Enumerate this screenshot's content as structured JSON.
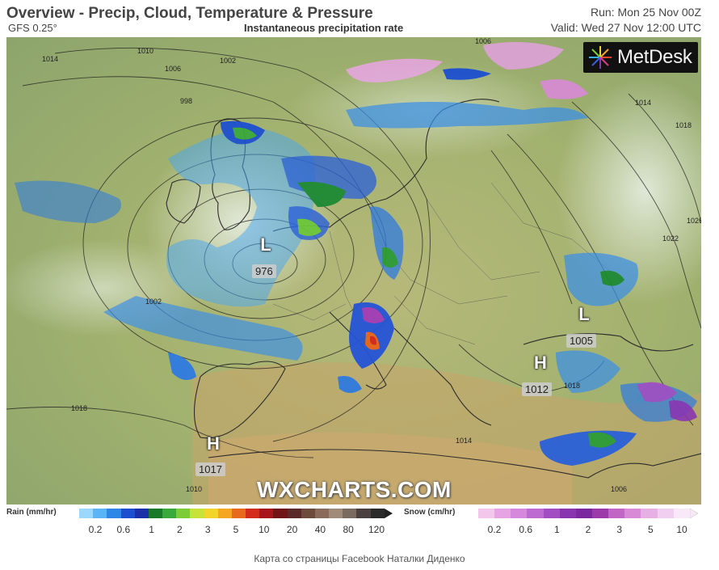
{
  "header": {
    "title": "Overview - Precip, Cloud, Temperature & Pressure",
    "model": "GFS 0.25°",
    "subtitle": "Instantaneous precipitation rate",
    "run": "Run: Mon 25 Nov 00Z",
    "valid": "Valid: Wed 27 Nov 12:00 UTC"
  },
  "logo": {
    "text": "MetDesk"
  },
  "watermark": "WXCHARTS.COM",
  "pressure_centers": [
    {
      "symbol": "L",
      "value": "976"
    },
    {
      "symbol": "L",
      "value": "1005"
    },
    {
      "symbol": "H",
      "value": "1012"
    },
    {
      "symbol": "H",
      "value": "1017"
    }
  ],
  "isobar_labels": [
    "1014",
    "1010",
    "1006",
    "1002",
    "998",
    "1002",
    "1006",
    "1018",
    "1014",
    "1018",
    "1022",
    "1026",
    "1014",
    "1010",
    "1006",
    "1018"
  ],
  "legend": {
    "rain": {
      "title": "Rain (mm/hr)",
      "ticks": [
        "0.2",
        "0.6",
        "1",
        "2",
        "3",
        "5",
        "10",
        "20",
        "40",
        "80",
        "120"
      ],
      "colors": [
        "#9ad8ff",
        "#5ab4f5",
        "#2e86e6",
        "#1c4fd0",
        "#1a2fa8",
        "#1b7a2a",
        "#38a93a",
        "#7ccc3a",
        "#c8e23a",
        "#f2d52a",
        "#f5a623",
        "#e86a1c",
        "#d42c1c",
        "#a8141c",
        "#701418",
        "#5a2a2a",
        "#6e4a3c",
        "#8a6a5a",
        "#a08a7a",
        "#7a6a60",
        "#4a4040",
        "#2a2a2a"
      ]
    },
    "snow": {
      "title": "Snow (cm/hr)",
      "ticks": [
        "0.2",
        "0.6",
        "1",
        "2",
        "3",
        "5",
        "10"
      ],
      "colors": [
        "#f3c6ec",
        "#e6a4e4",
        "#d688dc",
        "#bd6bd0",
        "#a24ec2",
        "#8a35b0",
        "#7a2a9e",
        "#9b3aa8",
        "#c266c6",
        "#d98ad6",
        "#e6b0e4",
        "#f0d0f0",
        "#f8e8f8"
      ]
    }
  },
  "credit": "Карта со страницы Facebook Наталки Диденко"
}
